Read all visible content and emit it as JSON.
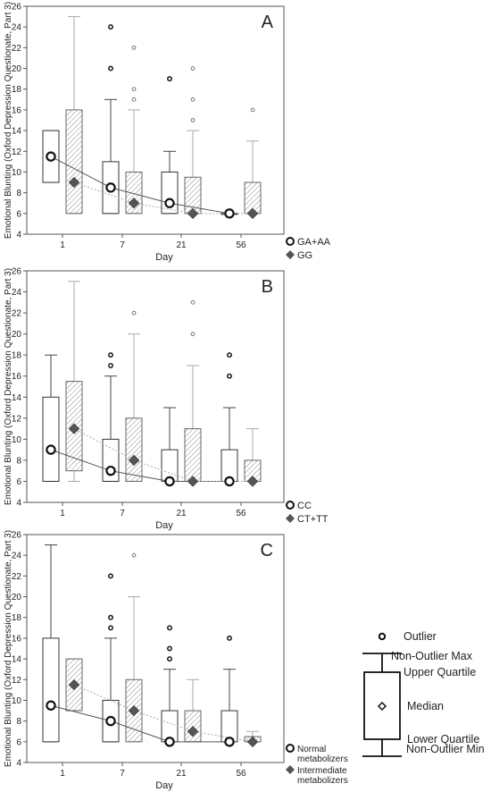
{
  "chart_data": [
    {
      "type": "box",
      "panel_label": "A",
      "ylabel": "Emotional Blunting (Oxford Depression Questionate, Part 3)",
      "xlabel": "Day",
      "ylim": [
        4,
        26
      ],
      "yticks": [
        4,
        6,
        8,
        10,
        12,
        14,
        16,
        18,
        20,
        22,
        24,
        26
      ],
      "categories": [
        "1",
        "7",
        "21",
        "56"
      ],
      "series": [
        {
          "name": "GA+AA",
          "style": "open",
          "boxes": [
            {
              "min": 9,
              "q1": 9,
              "median": 11.5,
              "q3": 14,
              "max": 14,
              "outliers": []
            },
            {
              "min": 6,
              "q1": 6,
              "median": 8.5,
              "q3": 11,
              "max": 17,
              "outliers": [
                20,
                24
              ]
            },
            {
              "min": 6,
              "q1": 6,
              "median": 7,
              "q3": 10,
              "max": 12,
              "outliers": [
                19
              ]
            },
            {
              "min": 6,
              "q1": 6,
              "median": 6,
              "q3": 6,
              "max": 6,
              "outliers": []
            }
          ]
        },
        {
          "name": "GG",
          "style": "hatched",
          "boxes": [
            {
              "min": 6,
              "q1": 6,
              "median": 9,
              "q3": 16,
              "max": 25,
              "outliers": []
            },
            {
              "min": 6,
              "q1": 6,
              "median": 7,
              "q3": 10,
              "max": 16,
              "outliers": [
                17,
                18,
                22
              ]
            },
            {
              "min": 6,
              "q1": 6,
              "median": 6,
              "q3": 9.5,
              "max": 14,
              "outliers": [
                15,
                17,
                20
              ]
            },
            {
              "min": 6,
              "q1": 6,
              "median": 6,
              "q3": 9,
              "max": 13,
              "outliers": [
                16
              ]
            }
          ]
        }
      ]
    },
    {
      "type": "box",
      "panel_label": "B",
      "ylabel": "Emotional Blunting (Oxford Depression Questionate, Part 3)",
      "xlabel": "Day",
      "ylim": [
        4,
        26
      ],
      "yticks": [
        4,
        6,
        8,
        10,
        12,
        14,
        16,
        18,
        20,
        22,
        24,
        26
      ],
      "categories": [
        "1",
        "7",
        "21",
        "56"
      ],
      "series": [
        {
          "name": "CC",
          "style": "open",
          "boxes": [
            {
              "min": 6,
              "q1": 6,
              "median": 9,
              "q3": 14,
              "max": 18,
              "outliers": []
            },
            {
              "min": 6,
              "q1": 6,
              "median": 7,
              "q3": 10,
              "max": 16,
              "outliers": [
                17,
                18
              ]
            },
            {
              "min": 6,
              "q1": 6,
              "median": 6,
              "q3": 9,
              "max": 13,
              "outliers": []
            },
            {
              "min": 6,
              "q1": 6,
              "median": 6,
              "q3": 9,
              "max": 13,
              "outliers": [
                16,
                18
              ]
            }
          ]
        },
        {
          "name": "CT+TT",
          "style": "hatched",
          "boxes": [
            {
              "min": 6,
              "q1": 7,
              "median": 11,
              "q3": 15.5,
              "max": 25,
              "outliers": []
            },
            {
              "min": 6,
              "q1": 6,
              "median": 8,
              "q3": 12,
              "max": 20,
              "outliers": [
                22
              ]
            },
            {
              "min": 6,
              "q1": 6,
              "median": 6,
              "q3": 11,
              "max": 17,
              "outliers": [
                20,
                23
              ]
            },
            {
              "min": 6,
              "q1": 6,
              "median": 6,
              "q3": 8,
              "max": 11,
              "outliers": []
            }
          ]
        }
      ]
    },
    {
      "type": "box",
      "panel_label": "C",
      "ylabel": "Emotional Blunting (Oxford Depression Questionate, Part 3)",
      "xlabel": "Day",
      "ylim": [
        4,
        26
      ],
      "yticks": [
        4,
        6,
        8,
        10,
        12,
        14,
        16,
        18,
        20,
        22,
        24,
        26
      ],
      "categories": [
        "1",
        "7",
        "21",
        "56"
      ],
      "series": [
        {
          "name": "Normal metabolizers",
          "style": "open",
          "boxes": [
            {
              "min": 6,
              "q1": 6,
              "median": 9.5,
              "q3": 16,
              "max": 25,
              "outliers": []
            },
            {
              "min": 6,
              "q1": 6,
              "median": 8,
              "q3": 10,
              "max": 16,
              "outliers": [
                17,
                18,
                22
              ]
            },
            {
              "min": 6,
              "q1": 6,
              "median": 6,
              "q3": 9,
              "max": 13,
              "outliers": [
                14,
                15,
                17
              ]
            },
            {
              "min": 6,
              "q1": 6,
              "median": 6,
              "q3": 9,
              "max": 13,
              "outliers": [
                16
              ]
            }
          ]
        },
        {
          "name": "Intermediate metabolizers",
          "style": "hatched",
          "boxes": [
            {
              "min": 9,
              "q1": 9,
              "median": 11.5,
              "q3": 14,
              "max": 14,
              "outliers": []
            },
            {
              "min": 6,
              "q1": 6,
              "median": 9,
              "q3": 12,
              "max": 20,
              "outliers": [
                24
              ]
            },
            {
              "min": 6,
              "q1": 6,
              "median": 7,
              "q3": 9,
              "max": 12,
              "outliers": []
            },
            {
              "min": 6,
              "q1": 6,
              "median": 6,
              "q3": 6.5,
              "max": 7,
              "outliers": []
            }
          ]
        }
      ]
    }
  ],
  "key_legend": {
    "items": [
      {
        "shape": "outlier",
        "label": "Outlier"
      },
      {
        "shape": "max",
        "label": "Non-Outlier Max"
      },
      {
        "shape": "q3",
        "label": "Upper Quartile"
      },
      {
        "shape": "median",
        "label": "Median"
      },
      {
        "shape": "q1",
        "label": "Lower Quartile"
      },
      {
        "shape": "min",
        "label": "Non-Outlier Min"
      }
    ]
  }
}
